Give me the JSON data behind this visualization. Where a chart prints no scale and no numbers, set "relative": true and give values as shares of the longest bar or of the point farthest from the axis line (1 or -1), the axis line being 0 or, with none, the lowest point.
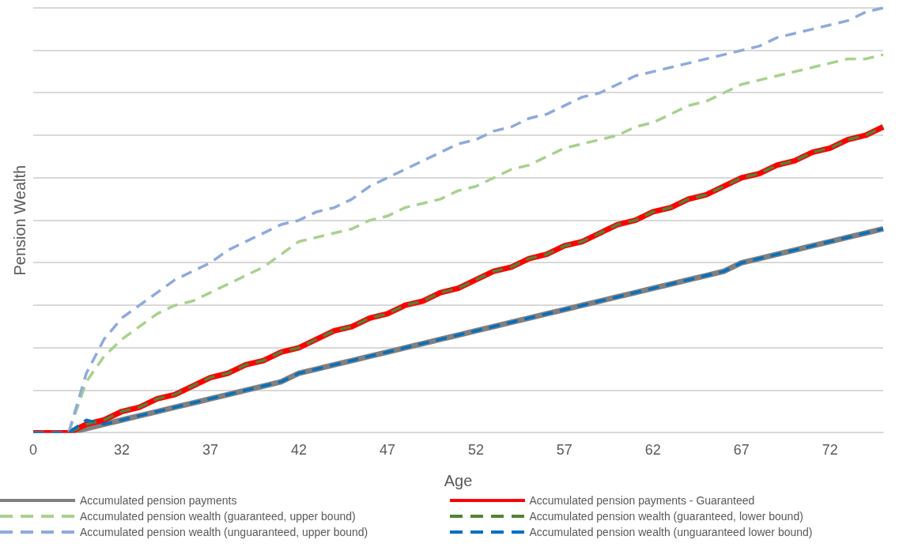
{
  "chart_data": {
    "type": "line",
    "xlabel": "Age",
    "ylabel": "Pension Wealth",
    "relative": true,
    "grid": "y",
    "legend": "bottom",
    "marker": "none",
    "categories": [
      "0",
      null,
      null,
      null,
      null,
      "32",
      null,
      null,
      null,
      null,
      "37",
      null,
      null,
      null,
      null,
      "42",
      null,
      null,
      null,
      null,
      "47",
      null,
      null,
      null,
      null,
      "52",
      null,
      null,
      null,
      null,
      "57",
      null,
      null,
      null,
      null,
      "62",
      null,
      null,
      null,
      null,
      "67",
      null,
      null,
      null,
      null,
      "72",
      null,
      null,
      null
    ],
    "series": [
      {
        "name": "Accumulated pension payments",
        "color": "#808080",
        "line_style": "solid",
        "values": [
          0,
          0,
          0,
          0.01,
          0.02,
          0.03,
          0.04,
          0.05,
          0.06,
          0.07,
          0.08,
          0.09,
          0.1,
          0.11,
          0.12,
          0.14,
          0.15,
          0.16,
          0.17,
          0.18,
          0.19,
          0.2,
          0.21,
          0.22,
          0.23,
          0.24,
          0.25,
          0.26,
          0.27,
          0.28,
          0.29,
          0.3,
          0.31,
          0.32,
          0.33,
          0.34,
          0.35,
          0.36,
          0.37,
          0.38,
          0.4,
          0.41,
          0.42,
          0.43,
          0.44,
          0.45,
          0.46,
          0.47,
          0.48
        ]
      },
      {
        "name": "Accumulated pension payments - Guaranteed",
        "color": "#ff0000",
        "line_style": "solid",
        "values": [
          0,
          0,
          0,
          0.02,
          0.03,
          0.05,
          0.06,
          0.08,
          0.09,
          0.11,
          0.13,
          0.14,
          0.16,
          0.17,
          0.19,
          0.2,
          0.22,
          0.24,
          0.25,
          0.27,
          0.28,
          0.3,
          0.31,
          0.33,
          0.34,
          0.36,
          0.38,
          0.39,
          0.41,
          0.42,
          0.44,
          0.45,
          0.47,
          0.49,
          0.5,
          0.52,
          0.53,
          0.55,
          0.56,
          0.58,
          0.6,
          0.61,
          0.63,
          0.64,
          0.66,
          0.67,
          0.69,
          0.7,
          0.72
        ]
      },
      {
        "name": "Accumulated pension wealth (guaranteed, upper bound)",
        "color": "#a9d18e",
        "line_style": "dashed",
        "values": [
          0,
          0,
          0,
          0.12,
          0.18,
          0.22,
          0.25,
          0.28,
          0.3,
          0.31,
          0.33,
          0.35,
          0.37,
          0.39,
          0.42,
          0.45,
          0.46,
          0.47,
          0.48,
          0.5,
          0.51,
          0.53,
          0.54,
          0.55,
          0.57,
          0.58,
          0.6,
          0.62,
          0.63,
          0.65,
          0.67,
          0.68,
          0.69,
          0.7,
          0.72,
          0.73,
          0.75,
          0.77,
          0.78,
          0.8,
          0.82,
          0.83,
          0.84,
          0.85,
          0.86,
          0.87,
          0.88,
          0.88,
          0.89
        ]
      },
      {
        "name": "Accumulated pension wealth (guaranteed, lower bound)",
        "color": "#548235",
        "line_style": "dashed",
        "values": [
          0,
          0,
          0,
          0.02,
          0.03,
          0.05,
          0.06,
          0.08,
          0.09,
          0.11,
          0.13,
          0.14,
          0.16,
          0.17,
          0.19,
          0.2,
          0.22,
          0.24,
          0.25,
          0.27,
          0.28,
          0.3,
          0.31,
          0.33,
          0.34,
          0.36,
          0.38,
          0.39,
          0.41,
          0.42,
          0.44,
          0.45,
          0.47,
          0.49,
          0.5,
          0.52,
          0.53,
          0.55,
          0.56,
          0.58,
          0.6,
          0.61,
          0.63,
          0.64,
          0.66,
          0.67,
          0.69,
          0.7,
          0.72
        ]
      },
      {
        "name": "Accumulated pension wealth (unguaranteed, upper bound)",
        "color": "#8faadc",
        "line_style": "dashed",
        "values": [
          0,
          0,
          0,
          0.14,
          0.22,
          0.27,
          0.3,
          0.33,
          0.36,
          0.38,
          0.4,
          0.43,
          0.45,
          0.47,
          0.49,
          0.5,
          0.52,
          0.53,
          0.55,
          0.58,
          0.6,
          0.62,
          0.64,
          0.66,
          0.68,
          0.69,
          0.71,
          0.72,
          0.74,
          0.75,
          0.77,
          0.79,
          0.8,
          0.82,
          0.84,
          0.85,
          0.86,
          0.87,
          0.88,
          0.89,
          0.9,
          0.91,
          0.93,
          0.94,
          0.95,
          0.96,
          0.97,
          0.99,
          1
        ]
      },
      {
        "name": "Accumulated pension wealth (unguaranteed lower bound)",
        "color": "#0070c0",
        "line_style": "dashed",
        "values": [
          0,
          0,
          0,
          0.03,
          0.02,
          0.03,
          0.04,
          0.05,
          0.06,
          0.07,
          0.08,
          0.09,
          0.1,
          0.11,
          0.12,
          0.14,
          0.15,
          0.16,
          0.17,
          0.18,
          0.19,
          0.2,
          0.21,
          0.22,
          0.23,
          0.24,
          0.25,
          0.26,
          0.27,
          0.28,
          0.29,
          0.3,
          0.31,
          0.32,
          0.33,
          0.34,
          0.35,
          0.36,
          0.37,
          0.38,
          0.4,
          0.41,
          0.42,
          0.43,
          0.44,
          0.45,
          0.46,
          0.47,
          0.48
        ]
      }
    ]
  }
}
